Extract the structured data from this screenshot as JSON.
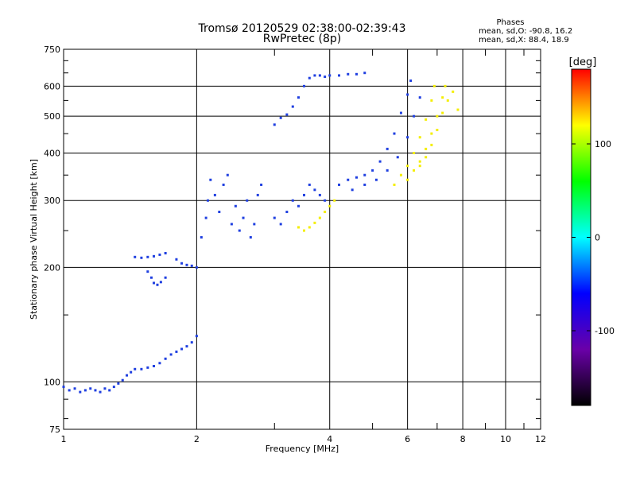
{
  "chart_data": {
    "type": "scatter",
    "title": "Tromsø 20120529 02:38:00-02:39:43",
    "subtitle": "RwPretec (8p)",
    "xlabel": "Frequency [MHz]",
    "ylabel": "Stationary phase Virtual Height [km]",
    "xscale": "log",
    "yscale": "log",
    "xlim": [
      1,
      12
    ],
    "ylim": [
      75,
      750
    ],
    "xticks": [
      "1",
      "2",
      "4",
      "6",
      "8",
      "10",
      "12"
    ],
    "yticks": [
      "75",
      "100",
      "200",
      "300",
      "400",
      "500",
      "600",
      "750"
    ],
    "grid": true,
    "stats": {
      "heading": "Phases",
      "line1": "mean, sd,O:  -90.8, 16.2",
      "line2": "mean, sd,X:  88.4, 18.9"
    },
    "colorbar": {
      "label": "[deg]",
      "range": [
        -180,
        180
      ],
      "ticks": [
        "100",
        "0",
        "-100"
      ],
      "colors": [
        "#000000",
        "#6a00a8",
        "#0000ff",
        "#00ffff",
        "#00ff00",
        "#ffff00",
        "#ff0000"
      ]
    },
    "series": [
      {
        "name": "O",
        "phase_mean": -90.8,
        "points": [
          [
            1.0,
            97
          ],
          [
            1.03,
            95
          ],
          [
            1.06,
            96
          ],
          [
            1.09,
            94
          ],
          [
            1.12,
            95
          ],
          [
            1.15,
            96
          ],
          [
            1.18,
            95
          ],
          [
            1.21,
            94
          ],
          [
            1.24,
            96
          ],
          [
            1.27,
            95
          ],
          [
            1.3,
            97
          ],
          [
            1.33,
            99
          ],
          [
            1.36,
            101
          ],
          [
            1.39,
            104
          ],
          [
            1.42,
            106
          ],
          [
            1.45,
            108
          ],
          [
            1.5,
            108
          ],
          [
            1.55,
            109
          ],
          [
            1.6,
            110
          ],
          [
            1.65,
            112
          ],
          [
            1.7,
            115
          ],
          [
            1.75,
            118
          ],
          [
            1.8,
            120
          ],
          [
            1.85,
            122
          ],
          [
            1.9,
            124
          ],
          [
            1.95,
            127
          ],
          [
            2.0,
            132
          ],
          [
            1.45,
            213
          ],
          [
            1.5,
            212
          ],
          [
            1.55,
            213
          ],
          [
            1.6,
            214
          ],
          [
            1.65,
            216
          ],
          [
            1.7,
            218
          ],
          [
            1.55,
            195
          ],
          [
            1.58,
            188
          ],
          [
            1.6,
            182
          ],
          [
            1.63,
            180
          ],
          [
            1.66,
            183
          ],
          [
            1.7,
            188
          ],
          [
            1.8,
            210
          ],
          [
            1.85,
            205
          ],
          [
            1.9,
            203
          ],
          [
            1.95,
            202
          ],
          [
            2.0,
            200
          ],
          [
            2.05,
            240
          ],
          [
            2.1,
            270
          ],
          [
            2.12,
            300
          ],
          [
            2.15,
            340
          ],
          [
            2.2,
            310
          ],
          [
            2.25,
            280
          ],
          [
            2.3,
            330
          ],
          [
            2.35,
            350
          ],
          [
            2.4,
            260
          ],
          [
            2.45,
            290
          ],
          [
            2.5,
            250
          ],
          [
            2.55,
            270
          ],
          [
            2.6,
            300
          ],
          [
            2.65,
            240
          ],
          [
            2.7,
            260
          ],
          [
            2.75,
            310
          ],
          [
            2.8,
            330
          ],
          [
            3.0,
            270
          ],
          [
            3.1,
            260
          ],
          [
            3.2,
            280
          ],
          [
            3.3,
            300
          ],
          [
            3.4,
            290
          ],
          [
            3.5,
            310
          ],
          [
            3.6,
            330
          ],
          [
            3.7,
            320
          ],
          [
            3.8,
            310
          ],
          [
            3.9,
            300
          ],
          [
            3.0,
            475
          ],
          [
            3.1,
            495
          ],
          [
            3.2,
            505
          ],
          [
            3.3,
            530
          ],
          [
            3.4,
            560
          ],
          [
            3.5,
            600
          ],
          [
            3.6,
            630
          ],
          [
            3.7,
            640
          ],
          [
            3.8,
            640
          ],
          [
            3.9,
            635
          ],
          [
            4.0,
            640
          ],
          [
            4.2,
            640
          ],
          [
            4.4,
            645
          ],
          [
            4.6,
            645
          ],
          [
            4.8,
            650
          ],
          [
            4.2,
            330
          ],
          [
            4.4,
            340
          ],
          [
            4.6,
            345
          ],
          [
            4.8,
            350
          ],
          [
            5.0,
            360
          ],
          [
            5.2,
            380
          ],
          [
            5.4,
            410
          ],
          [
            5.6,
            450
          ],
          [
            5.8,
            510
          ],
          [
            6.0,
            570
          ],
          [
            6.1,
            620
          ],
          [
            4.5,
            320
          ],
          [
            4.8,
            330
          ],
          [
            5.1,
            340
          ],
          [
            5.4,
            360
          ],
          [
            5.7,
            390
          ],
          [
            6.0,
            440
          ],
          [
            6.2,
            500
          ],
          [
            6.4,
            560
          ]
        ]
      },
      {
        "name": "X",
        "phase_mean": 88.4,
        "points": [
          [
            3.4,
            255
          ],
          [
            3.5,
            250
          ],
          [
            3.6,
            255
          ],
          [
            3.7,
            262
          ],
          [
            3.8,
            270
          ],
          [
            3.9,
            280
          ],
          [
            4.0,
            290
          ],
          [
            4.1,
            300
          ],
          [
            5.6,
            330
          ],
          [
            5.8,
            350
          ],
          [
            6.0,
            370
          ],
          [
            6.2,
            400
          ],
          [
            6.4,
            440
          ],
          [
            6.6,
            490
          ],
          [
            6.8,
            550
          ],
          [
            6.9,
            600
          ],
          [
            6.0,
            340
          ],
          [
            6.2,
            360
          ],
          [
            6.4,
            380
          ],
          [
            6.6,
            410
          ],
          [
            6.8,
            450
          ],
          [
            7.0,
            500
          ],
          [
            7.2,
            560
          ],
          [
            7.3,
            600
          ],
          [
            6.4,
            370
          ],
          [
            6.6,
            390
          ],
          [
            6.8,
            420
          ],
          [
            7.0,
            460
          ],
          [
            7.2,
            510
          ],
          [
            7.4,
            550
          ],
          [
            7.6,
            580
          ],
          [
            7.8,
            520
          ]
        ]
      }
    ]
  }
}
